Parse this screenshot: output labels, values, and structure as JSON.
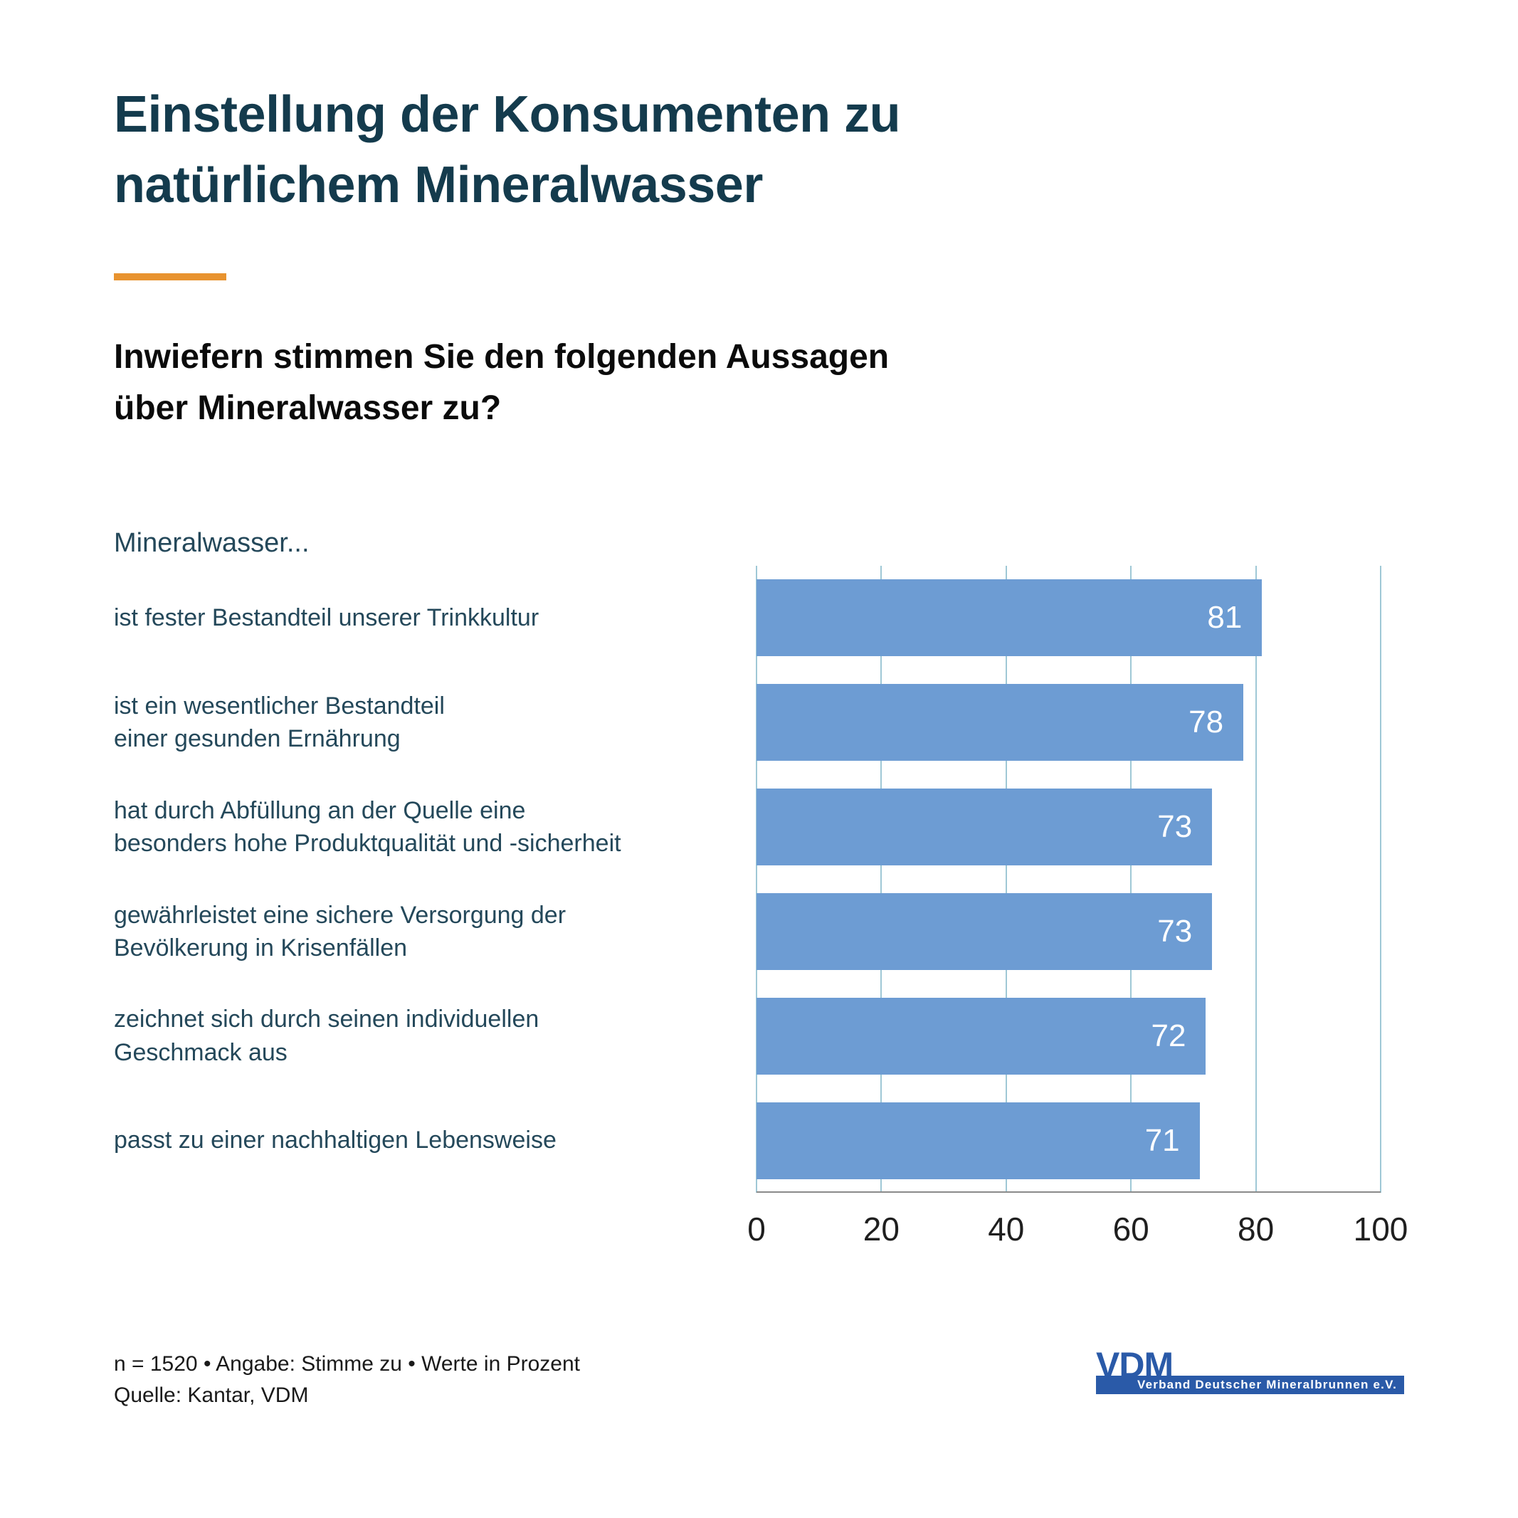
{
  "page": {
    "title_lines": [
      "Einstellung der Konsumenten zu",
      "natürlichem Mineralwasser"
    ],
    "question_lines": [
      "Inwiefern stimmen Sie den folgenden Aussagen",
      "über Mineralwasser zu?"
    ],
    "chart_intro": "Mineralwasser...",
    "footnote_line1": "n = 1520 • Angabe: Stimme zu • Werte in Prozent",
    "footnote_line2": "Quelle: Kantar, VDM"
  },
  "logo": {
    "acronym": "VDM",
    "name": "Verband Deutscher Mineralbrunnen e.V."
  },
  "colors": {
    "title": "#143B4D",
    "accent_orange": "#E8932F",
    "bar_blue": "#6D9CD3",
    "gridline": "#9FC8D6",
    "axis_line": "#8A8A8A",
    "label_teal": "#24485A",
    "logo_blue": "#2A5AA8",
    "bar_value_text": "#FFFFFF"
  },
  "chart_data": {
    "type": "bar",
    "orientation": "horizontal",
    "unit": "Prozent",
    "xlim": [
      0,
      100
    ],
    "x_ticks": [
      0,
      20,
      40,
      60,
      80,
      100
    ],
    "grid": true,
    "categories": [
      "ist fester Bestandteil unserer Trinkkultur",
      "ist ein wesentlicher Bestandteil einer gesunden Ernährung",
      "hat durch Abfüllung an der Quelle eine besonders hohe Produktqualität und -sicherheit",
      "gewährleistet eine sichere Versorgung der Bevölkerung in Krisenfällen",
      "zeichnet sich durch seinen individuellen Geschmack aus",
      "passt zu einer nachhaltigen Lebensweise"
    ],
    "values": [
      81,
      78,
      73,
      73,
      72,
      71
    ],
    "items": [
      {
        "label_lines": [
          "ist fester Bestandteil unserer Trinkkultur",
          ""
        ],
        "value": 81
      },
      {
        "label_lines": [
          "ist ein wesentlicher Bestandteil",
          "einer gesunden Ernährung"
        ],
        "value": 78
      },
      {
        "label_lines": [
          "hat durch Abfüllung an der Quelle eine",
          "besonders hohe Produktqualität und -sicherheit"
        ],
        "value": 73
      },
      {
        "label_lines": [
          "gewährleistet eine sichere Versorgung der",
          "Bevölkerung in Krisenfällen"
        ],
        "value": 73
      },
      {
        "label_lines": [
          "zeichnet sich durch seinen individuellen",
          "Geschmack aus"
        ],
        "value": 72
      },
      {
        "label_lines": [
          "passt zu einer nachhaltigen Lebensweise",
          ""
        ],
        "value": 71
      }
    ]
  }
}
